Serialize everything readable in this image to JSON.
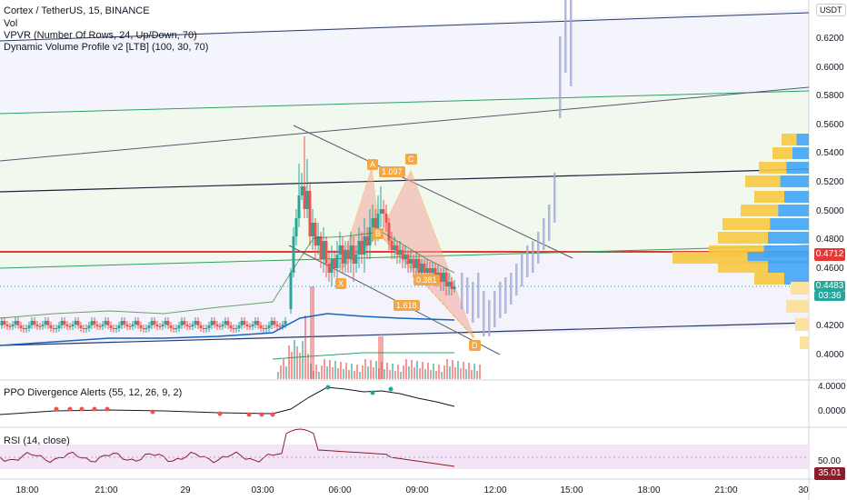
{
  "legend": {
    "title": "Cortex / TetherUS, 15, BINANCE",
    "vol": "Vol",
    "vpvr": "VPVR (Number Of Rows, 24, Up/Down, 70)",
    "dvp": "Dynamic Volume Profile v2 [LTB] (100, 30, 70)"
  },
  "currency_button": "USDT",
  "price_axis": [
    "0.6200",
    "0.6000",
    "0.5800",
    "0.5600",
    "0.5400",
    "0.5200",
    "0.5000",
    "0.4800",
    "0.4600",
    "0.4400",
    "0.4200",
    "0.4000"
  ],
  "price_tags": {
    "level": "0.4712",
    "current": "0.4483",
    "countdown": "03:36"
  },
  "pattern_labels": {
    "x": "X",
    "a": "A",
    "b": "B",
    "c": "C",
    "d": "D",
    "ab_ratio": "1.097",
    "bc_ratio": "0.381",
    "cd_ratio": "1.618"
  },
  "ppo": {
    "title": "PPO Divergence Alerts (55, 12, 26, 9, 2)",
    "axis": [
      "4.0000",
      "0.0000"
    ]
  },
  "rsi": {
    "title": "RSI (14, close)",
    "axis": [
      "50.00"
    ],
    "value": "35.01"
  },
  "time_axis": [
    "18:00",
    "21:00",
    "29",
    "03:00",
    "06:00",
    "09:00",
    "12:00",
    "15:00",
    "18:00",
    "21:00",
    "30"
  ],
  "colors": {
    "bull": "#26a69a",
    "bear": "#ef5350",
    "level_line": "#e53935",
    "current_tag": "#26a69a",
    "rsi_line": "#8e1b2a",
    "pattern": "#f5a742"
  }
}
